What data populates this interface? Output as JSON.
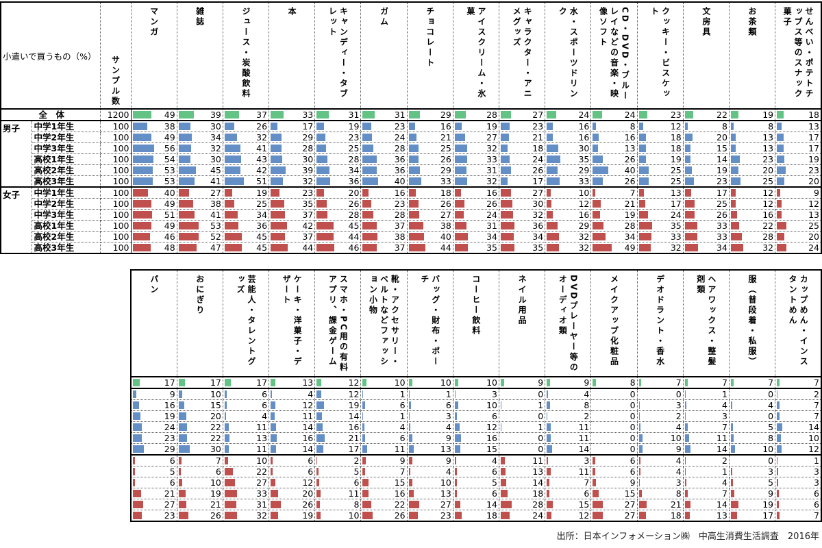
{
  "colors": {
    "total": "#63c384",
    "male": "#638ec6",
    "female": "#c0504d"
  },
  "corner_label": "小遣いで買うもの（%）",
  "sample_label": "サンプル数",
  "rows": [
    {
      "group": "",
      "grade": "全　体",
      "n": "1200",
      "kind": "total"
    },
    {
      "group": "男子",
      "grade": "中学1年生",
      "n": "100",
      "kind": "male"
    },
    {
      "group": "",
      "grade": "中学2年生",
      "n": "100",
      "kind": "male"
    },
    {
      "group": "",
      "grade": "中学3年生",
      "n": "100",
      "kind": "male"
    },
    {
      "group": "",
      "grade": "高校1年生",
      "n": "100",
      "kind": "male"
    },
    {
      "group": "",
      "grade": "高校2年生",
      "n": "100",
      "kind": "male"
    },
    {
      "group": "",
      "grade": "高校3年生",
      "n": "100",
      "kind": "male"
    },
    {
      "group": "女子",
      "grade": "中学1年生",
      "n": "100",
      "kind": "female"
    },
    {
      "group": "",
      "grade": "中学2年生",
      "n": "100",
      "kind": "female"
    },
    {
      "group": "",
      "grade": "中学3年生",
      "n": "100",
      "kind": "female"
    },
    {
      "group": "",
      "grade": "高校1年生",
      "n": "100",
      "kind": "female"
    },
    {
      "group": "",
      "grade": "高校2年生",
      "n": "100",
      "kind": "female"
    },
    {
      "group": "",
      "grade": "高校3年生",
      "n": "100",
      "kind": "female"
    }
  ],
  "top_items": [
    {
      "label": "マンガ",
      "values": [
        49,
        38,
        49,
        56,
        54,
        53,
        53,
        40,
        49,
        51,
        49,
        46,
        48
      ]
    },
    {
      "label": "雑誌",
      "values": [
        39,
        30,
        34,
        32,
        30,
        45,
        41,
        27,
        38,
        41,
        53,
        52,
        47
      ]
    },
    {
      "label": "ジュース・炭酸飲料",
      "values": [
        37,
        26,
        32,
        41,
        43,
        42,
        51,
        19,
        25,
        34,
        36,
        45,
        45
      ]
    },
    {
      "label": "本",
      "values": [
        33,
        17,
        29,
        28,
        30,
        39,
        32,
        23,
        35,
        37,
        42,
        37,
        44
      ]
    },
    {
      "label": "キャンディー・タブレット",
      "values": [
        31,
        19,
        23,
        25,
        28,
        34,
        36,
        20,
        26,
        28,
        45,
        44,
        46
      ]
    },
    {
      "label": "ガム",
      "values": [
        31,
        23,
        24,
        28,
        36,
        36,
        40,
        16,
        23,
        28,
        37,
        38,
        37
      ]
    },
    {
      "label": "チョコレート",
      "values": [
        29,
        16,
        21,
        25,
        26,
        29,
        33,
        18,
        26,
        27,
        38,
        40,
        44
      ]
    },
    {
      "label": "アイスクリーム・氷菓",
      "values": [
        28,
        19,
        27,
        32,
        33,
        31,
        32,
        16,
        26,
        24,
        31,
        34,
        35
      ]
    },
    {
      "label": "キャラクター・アニメグッズ",
      "values": [
        27,
        23,
        21,
        18,
        24,
        26,
        17,
        27,
        30,
        32,
        36,
        34,
        35
      ]
    },
    {
      "label": "水・スポーツドリンク",
      "values": [
        24,
        16,
        16,
        30,
        35,
        29,
        33,
        10,
        12,
        16,
        29,
        32,
        32
      ]
    },
    {
      "label": "CD・DVD・ブルーレイなどの音楽・映像ソフト",
      "values": [
        24,
        8,
        16,
        13,
        26,
        40,
        26,
        7,
        21,
        19,
        28,
        34,
        49
      ]
    },
    {
      "label": "クッキー・ビスケット",
      "values": [
        23,
        12,
        18,
        18,
        19,
        25,
        25,
        13,
        17,
        24,
        35,
        33,
        32
      ]
    },
    {
      "label": "文房具",
      "values": [
        22,
        8,
        20,
        15,
        14,
        19,
        23,
        17,
        25,
        26,
        33,
        33,
        34
      ]
    },
    {
      "label": "お茶類",
      "values": [
        19,
        8,
        13,
        13,
        23,
        20,
        25,
        12,
        12,
        16,
        22,
        28,
        32
      ]
    },
    {
      "label": "せんべい・ポテトチップス等のスナック菓子",
      "values": [
        18,
        13,
        17,
        17,
        19,
        23,
        20,
        9,
        12,
        13,
        25,
        20,
        24
      ]
    }
  ],
  "bottom_items": [
    {
      "label": "パン",
      "values": [
        17,
        9,
        16,
        19,
        24,
        23,
        29,
        6,
        5,
        6,
        21,
        27,
        23
      ]
    },
    {
      "label": "おにぎり",
      "values": [
        17,
        10,
        15,
        20,
        22,
        22,
        30,
        7,
        6,
        10,
        19,
        21,
        26
      ]
    },
    {
      "label": "芸能人・タレントグッズ",
      "values": [
        17,
        6,
        6,
        4,
        11,
        13,
        11,
        10,
        22,
        27,
        33,
        31,
        32
      ]
    },
    {
      "label": "ケーキ・洋菓子・デザート",
      "values": [
        13,
        4,
        12,
        11,
        14,
        16,
        14,
        6,
        6,
        12,
        20,
        26,
        19
      ]
    },
    {
      "label": "スマホ・PC用の有料アプリ、課金ゲーム",
      "values": [
        12,
        12,
        19,
        14,
        16,
        21,
        17,
        2,
        5,
        6,
        11,
        8,
        10
      ]
    },
    {
      "label": "靴・アクセサリー・ベルトなどファッション小物",
      "values": [
        10,
        1,
        6,
        1,
        4,
        6,
        11,
        9,
        7,
        15,
        16,
        22,
        26
      ]
    },
    {
      "label": "バッグ・財布・ポーチ",
      "values": [
        10,
        1,
        6,
        3,
        4,
        9,
        13,
        9,
        4,
        10,
        13,
        27,
        23
      ]
    },
    {
      "label": "コーヒー飲料",
      "values": [
        10,
        3,
        10,
        6,
        12,
        16,
        15,
        4,
        6,
        5,
        6,
        14,
        18
      ]
    },
    {
      "label": "ネイル用品",
      "values": [
        9,
        0,
        1,
        0,
        1,
        0,
        0,
        11,
        13,
        14,
        18,
        28,
        24
      ]
    },
    {
      "label": "DVDプレーヤー等のオーディオ類",
      "values": [
        9,
        4,
        8,
        2,
        11,
        11,
        14,
        3,
        11,
        7,
        6,
        15,
        12
      ]
    },
    {
      "label": "メイクアップ化粧品",
      "values": [
        8,
        0,
        0,
        0,
        0,
        0,
        0,
        6,
        6,
        9,
        15,
        27,
        27
      ]
    },
    {
      "label": "デオドラント・香水",
      "values": [
        7,
        0,
        3,
        2,
        4,
        10,
        9,
        4,
        4,
        3,
        8,
        21,
        18
      ]
    },
    {
      "label": "ヘアワックス・整髪剤類",
      "values": [
        7,
        1,
        4,
        3,
        7,
        11,
        14,
        2,
        1,
        4,
        7,
        14,
        13
      ]
    },
    {
      "label": "服（普段着・私服）",
      "values": [
        7,
        0,
        4,
        0,
        5,
        8,
        10,
        0,
        3,
        5,
        9,
        19,
        17
      ]
    },
    {
      "label": "カップめん・インスタントめん",
      "values": [
        7,
        2,
        7,
        7,
        14,
        10,
        12,
        1,
        3,
        3,
        6,
        6,
        7
      ]
    }
  ],
  "source": "出所：日本インフォメーション㈱　中高生消費生活調査　2016年"
}
